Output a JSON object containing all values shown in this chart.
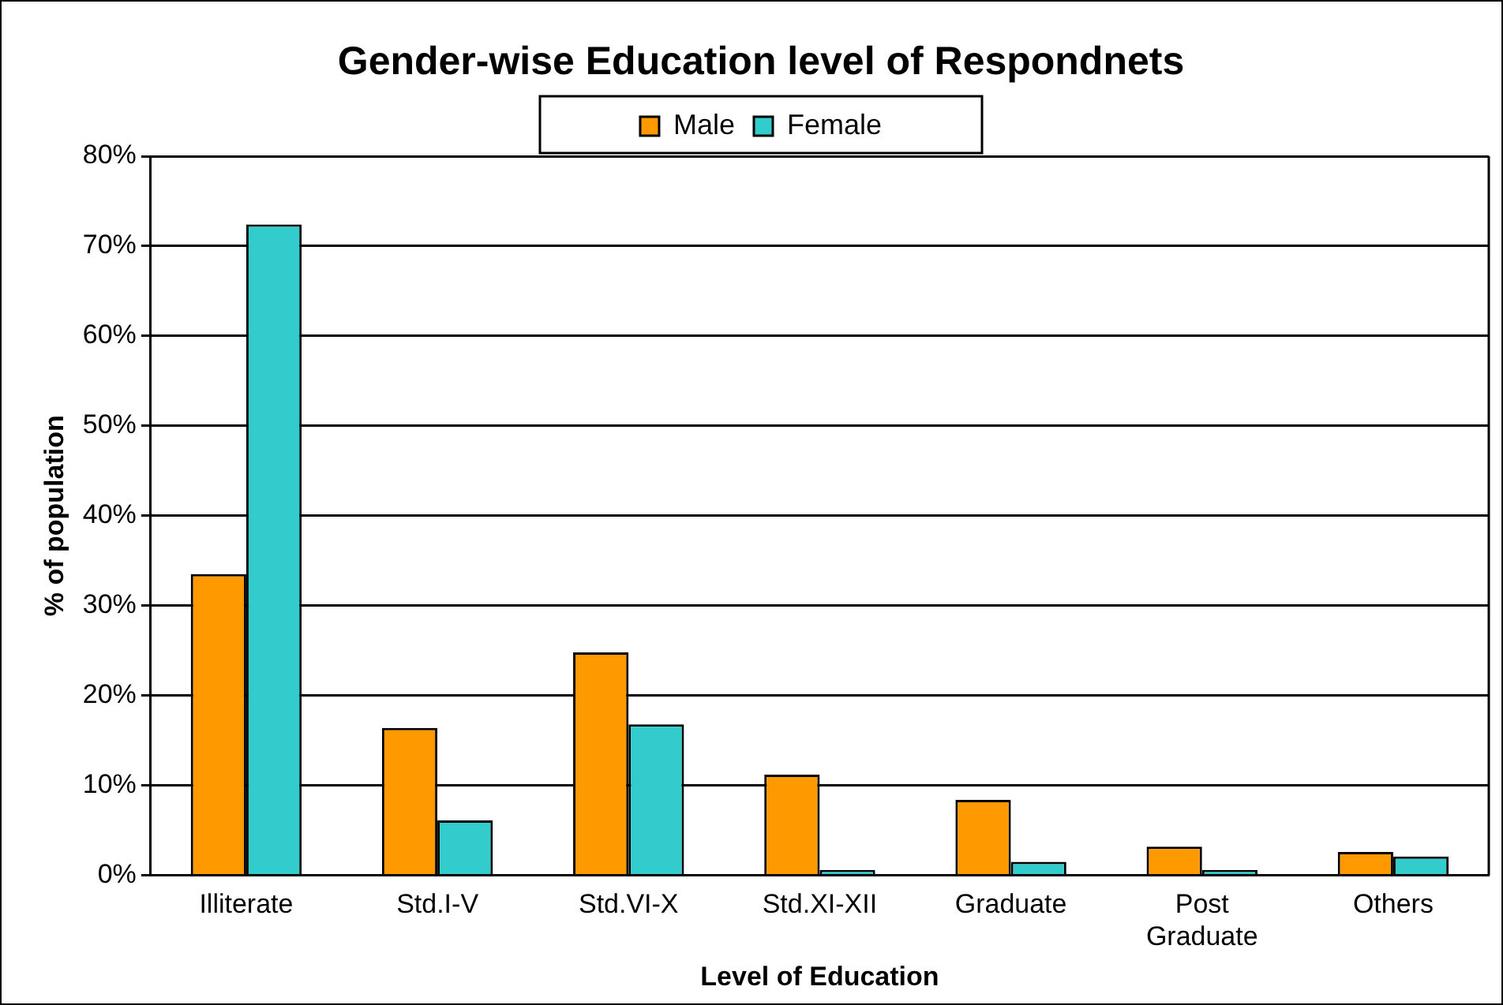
{
  "chart_data": {
    "type": "bar",
    "title": "Gender-wise Education level of Respondnets",
    "xlabel": "Level of Education",
    "ylabel": "% of population",
    "categories": [
      "Illiterate",
      "Std.I-V",
      "Std.VI-X",
      "Std.XI-XII",
      "Graduate",
      "Post Graduate",
      "Others"
    ],
    "series": [
      {
        "name": "Male",
        "color": "#ff9900",
        "values": [
          33.5,
          16.4,
          24.8,
          11.2,
          8.4,
          3.2,
          2.6
        ]
      },
      {
        "name": "Female",
        "color": "#33cccc",
        "values": [
          72.4,
          6.1,
          16.8,
          0.6,
          1.5,
          0.6,
          2.1
        ]
      }
    ],
    "ylim": [
      0,
      80
    ],
    "yticks": [
      {
        "value": 0,
        "label": "0%"
      },
      {
        "value": 10,
        "label": "10%"
      },
      {
        "value": 20,
        "label": "20%"
      },
      {
        "value": 30,
        "label": "30%"
      },
      {
        "value": 40,
        "label": "40%"
      },
      {
        "value": 50,
        "label": "50%"
      },
      {
        "value": 60,
        "label": "60%"
      },
      {
        "value": 70,
        "label": "70%"
      },
      {
        "value": 80,
        "label": "80%"
      }
    ],
    "grid": "y",
    "legend": "top"
  }
}
